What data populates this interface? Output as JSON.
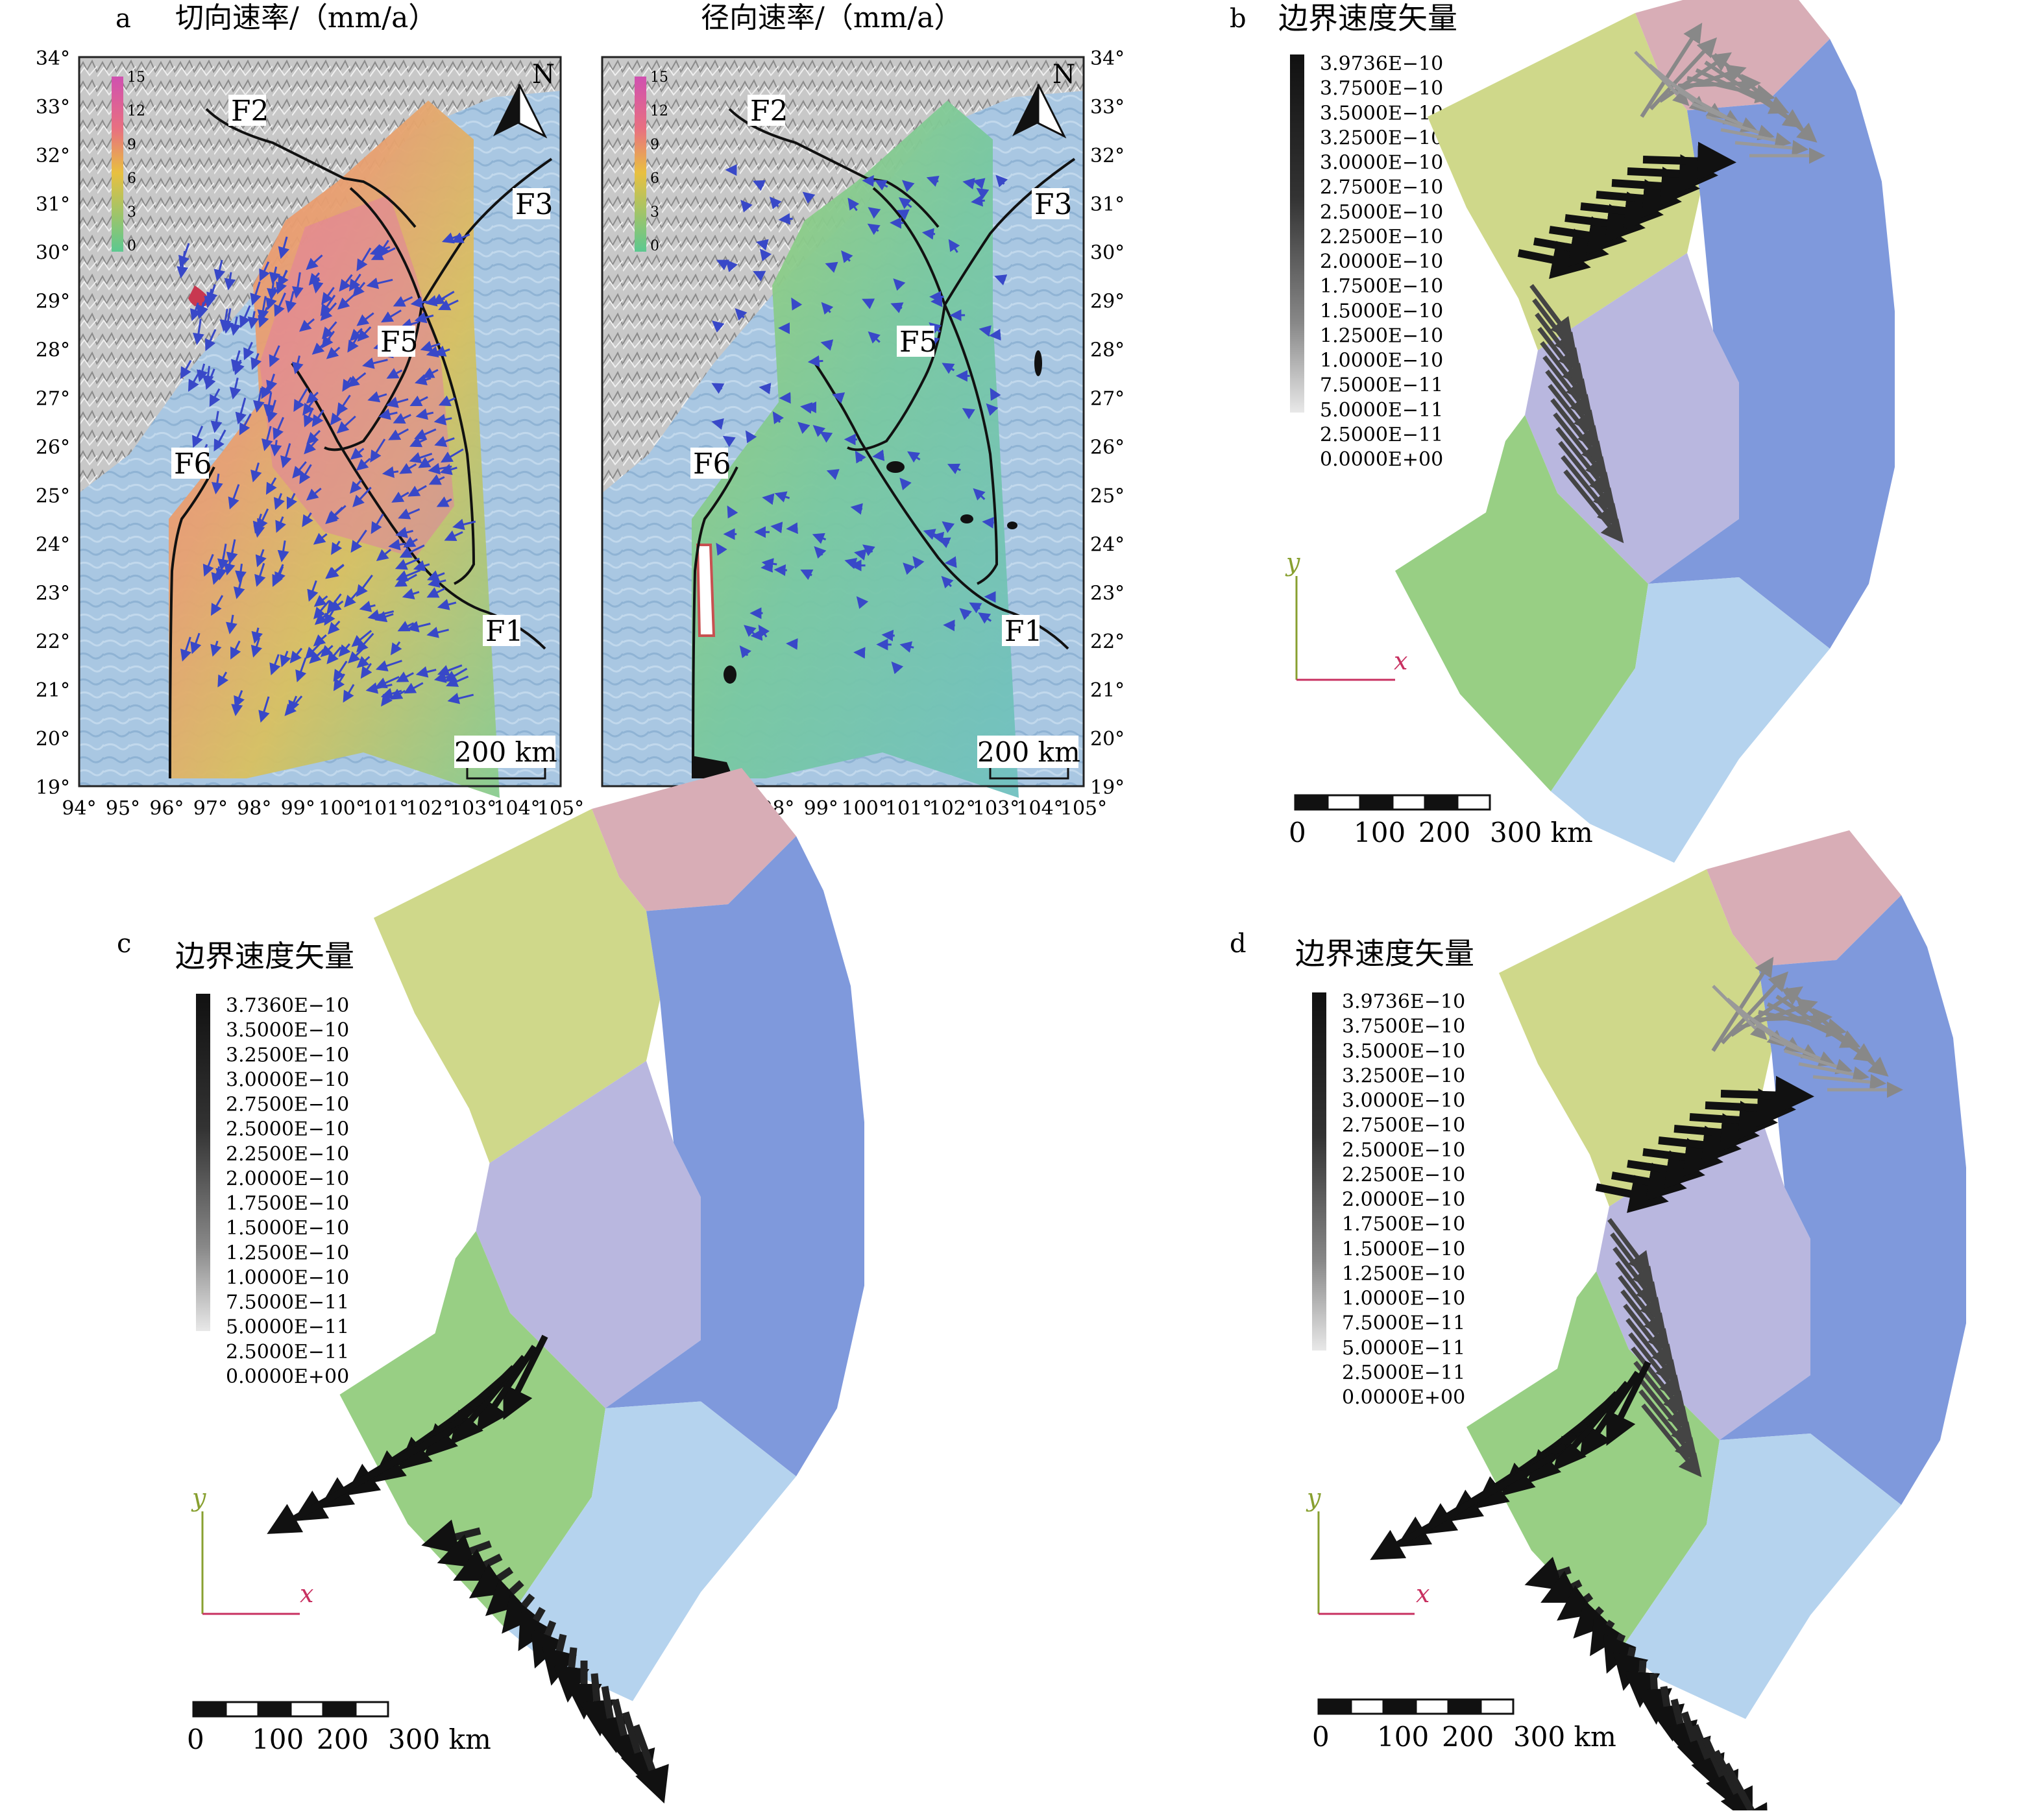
{
  "panel_a": {
    "letter": "a",
    "title_left": "切向速率/（mm/a）",
    "title_right": "径向速率/（mm/a）",
    "lat_labels": [
      "34°",
      "33°",
      "32°",
      "31°",
      "30°",
      "29°",
      "28°",
      "27°",
      "26°",
      "25°",
      "24°",
      "23°",
      "22°",
      "21°",
      "20°",
      "19°"
    ],
    "lon_labels": [
      "94°",
      "95°",
      "96°",
      "97°",
      "98°",
      "99°",
      "100°",
      "101°",
      "102°",
      "103°",
      "104°",
      "105°"
    ],
    "legend_ticks": [
      "15",
      "12",
      "9",
      "6",
      "3",
      "0"
    ],
    "north": "N",
    "faults": [
      "F1",
      "F2",
      "F3",
      "F5",
      "F6"
    ],
    "scale_label": "200 km",
    "colors": {
      "high": "#d860a8",
      "mid": "#e8b050",
      "low": "#7cc8a0",
      "sea": "#9ec4e2",
      "vectors": "#3848c8"
    }
  },
  "panel_b": {
    "letter": "b",
    "title": "边界速度矢量",
    "legend": [
      "3.9736E−10",
      "3.7500E−10",
      "3.5000E−10",
      "3.2500E−10",
      "3.0000E−10",
      "2.7500E−10",
      "2.5000E−10",
      "2.2500E−10",
      "2.0000E−10",
      "1.7500E−10",
      "1.5000E−10",
      "1.2500E−10",
      "1.0000E−10",
      "7.5000E−11",
      "5.0000E−11",
      "2.5000E−11",
      "0.0000E+00"
    ],
    "axis_x": "x",
    "axis_y": "y",
    "scale_ticks": [
      "0",
      "100",
      "200",
      "300 km"
    ]
  },
  "panel_c": {
    "letter": "c",
    "title": "边界速度矢量",
    "legend": [
      "3.7360E−10",
      "3.5000E−10",
      "3.2500E−10",
      "3.0000E−10",
      "2.7500E−10",
      "2.5000E−10",
      "2.2500E−10",
      "2.0000E−10",
      "1.7500E−10",
      "1.5000E−10",
      "1.2500E−10",
      "1.0000E−10",
      "7.5000E−11",
      "5.0000E−11",
      "2.5000E−11",
      "0.0000E+00"
    ],
    "axis_x": "x",
    "axis_y": "y",
    "scale_ticks": [
      "0",
      "100",
      "200",
      "300 km"
    ]
  },
  "panel_d": {
    "letter": "d",
    "title": "边界速度矢量",
    "legend": [
      "3.9736E−10",
      "3.7500E−10",
      "3.5000E−10",
      "3.2500E−10",
      "3.0000E−10",
      "2.7500E−10",
      "2.5000E−10",
      "2.2500E−10",
      "2.0000E−10",
      "1.7500E−10",
      "1.5000E−10",
      "1.2500E−10",
      "1.0000E−10",
      "7.5000E−11",
      "5.0000E−11",
      "2.5000E−11",
      "0.0000E+00"
    ],
    "axis_x": "x",
    "axis_y": "y",
    "scale_ticks": [
      "0",
      "100",
      "200",
      "300 km"
    ]
  },
  "block_colors": {
    "pink": "#d8adb6",
    "yellow": "#cfd88a",
    "purple": "#b9b7df",
    "blue": "#7f99dc",
    "green": "#98cf84",
    "lightblue": "#b5d3ee"
  }
}
